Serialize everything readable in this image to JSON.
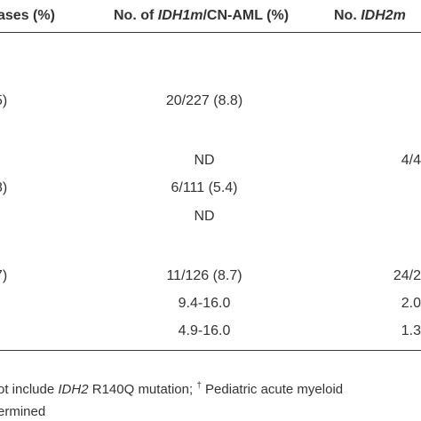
{
  "header": {
    "col1": "ases (%)",
    "col2_prefix": "No. of ",
    "col2_italic": "IDH1m",
    "col2_suffix": "/CN-AML (%)",
    "col3_prefix": "No. ",
    "col3_italic": "IDH2m"
  },
  "rows": [
    {
      "c1": "5)",
      "c2": "20/227 (8.8)",
      "c3": ""
    },
    {
      "c1": "",
      "c2": "ND",
      "c3": "4/4"
    },
    {
      "c1": "8)",
      "c2": "6/111 (5.4)",
      "c3": ""
    },
    {
      "c1": ")",
      "c2": "ND",
      "c3": ""
    },
    {
      "c1": "7)",
      "c2": "11/126 (8.7)",
      "c3": "24/2"
    },
    {
      "c1": "",
      "c2": "9.4-16.0",
      "c3": "2.0"
    },
    {
      "c1": "",
      "c2": "4.9-16.0",
      "c3": "1.3"
    }
  ],
  "footnote": {
    "line1_prefix": "ot include ",
    "line1_italic": "IDH2",
    "line1_middle": " R140Q mutation; ",
    "line1_dagger": "†",
    "line1_suffix": " Pediatric acute myeloid",
    "line2": "ermined"
  }
}
